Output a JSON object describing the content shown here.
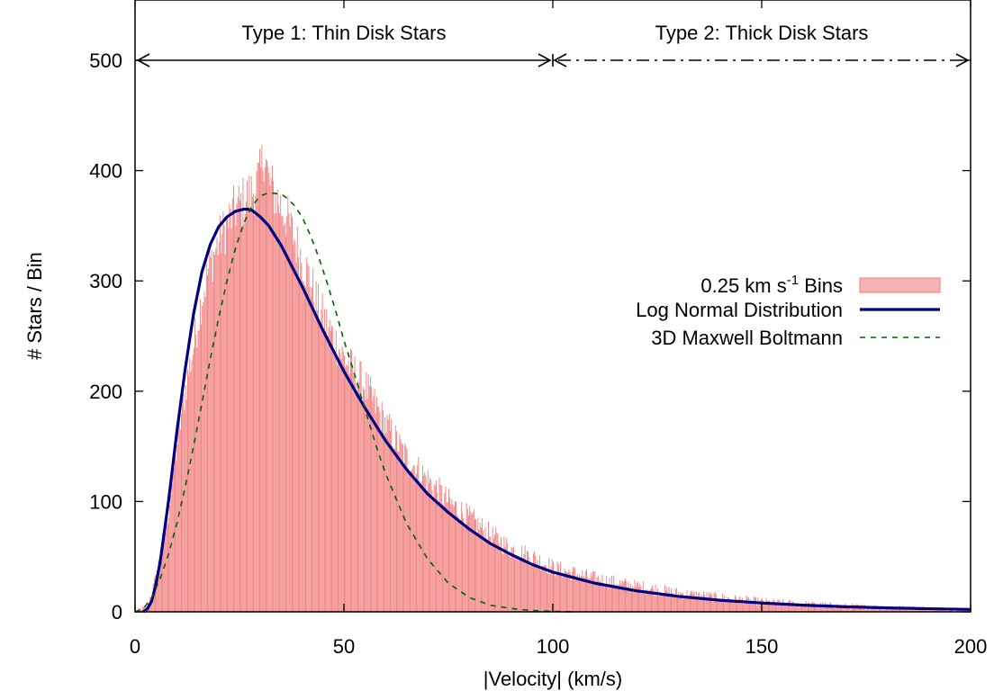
{
  "chart_data": {
    "type": "bar",
    "xlabel": "|Velocity| (km/s)",
    "ylabel": "# Stars  / Bin",
    "xlim": [
      0,
      200
    ],
    "ylim": [
      0,
      500
    ],
    "x_ticks": [
      "0",
      "50",
      "100",
      "150",
      "200"
    ],
    "y_ticks": [
      "0",
      "100",
      "200",
      "300",
      "400",
      "500"
    ],
    "grid": false,
    "legend_position": "right",
    "annotations": [
      {
        "text": "Type 1: Thin Disk Stars",
        "x_range": [
          0,
          100
        ],
        "y": 500,
        "style": "solid-double-arrow"
      },
      {
        "text": "Type 2: Thick Disk Stars",
        "x_range": [
          100,
          200
        ],
        "y": 500,
        "style": "dash-dot-double-arrow"
      }
    ],
    "legend": [
      {
        "prefix": "0.25 km s",
        "superscript": "-1",
        "suffix": " Bins",
        "swatch": "#f08080"
      },
      {
        "label": "Log Normal Distribution",
        "swatch": "#000080"
      },
      {
        "label": "3D Maxwell Boltmann",
        "swatch": "#006400"
      }
    ],
    "series": [
      {
        "kind": "histogram",
        "bin_width": 0.25,
        "color": "#f08080",
        "envelope": {
          "x": [
            0,
            3,
            5,
            8,
            10,
            12,
            14,
            16,
            18,
            20,
            22,
            24,
            26,
            28,
            30,
            31,
            32,
            34,
            36,
            38,
            40,
            42,
            44,
            46,
            48,
            50,
            55,
            60,
            65,
            70,
            75,
            80,
            85,
            90,
            95,
            100,
            110,
            120,
            130,
            140,
            150,
            160,
            170,
            180,
            190,
            200
          ],
          "y": [
            0,
            5,
            30,
            90,
            150,
            200,
            240,
            285,
            315,
            335,
            350,
            365,
            372,
            380,
            395,
            420,
            390,
            375,
            360,
            340,
            320,
            300,
            275,
            260,
            245,
            230,
            205,
            170,
            140,
            120,
            100,
            85,
            70,
            57,
            50,
            40,
            30,
            23,
            17,
            13,
            9,
            7,
            5,
            4,
            3,
            2
          ]
        }
      },
      {
        "name": "Log Normal Distribution",
        "kind": "line",
        "color": "#000080",
        "x": [
          2,
          3,
          4,
          5,
          6,
          8,
          10,
          12,
          14,
          16,
          18,
          20,
          22,
          24,
          26,
          27,
          28,
          30,
          32,
          35,
          40,
          45,
          50,
          55,
          60,
          65,
          70,
          75,
          80,
          85,
          90,
          95,
          100,
          110,
          120,
          130,
          140,
          150,
          160,
          170,
          180,
          190,
          200
        ],
        "y": [
          0,
          3,
          10,
          25,
          45,
          100,
          163,
          220,
          270,
          308,
          333,
          349,
          358,
          363,
          365,
          365,
          364,
          358,
          350,
          332,
          295,
          255,
          218,
          185,
          155,
          129,
          107,
          90,
          75,
          62,
          52,
          43,
          36,
          26,
          19,
          14,
          10.5,
          8,
          6,
          4.6,
          3.6,
          2.8,
          2.2
        ]
      },
      {
        "name": "3D Maxwell Boltmann",
        "kind": "line",
        "color": "#006400",
        "x": [
          0,
          2,
          4,
          6,
          8,
          10,
          12,
          14,
          16,
          18,
          20,
          22,
          24,
          26,
          28,
          30,
          32,
          34,
          35,
          36,
          38,
          40,
          42,
          44,
          46,
          48,
          50,
          52,
          55,
          58,
          60,
          65,
          70,
          75,
          80,
          85,
          90,
          95,
          100,
          105
        ],
        "y": [
          0,
          3,
          13,
          30,
          52,
          80,
          113,
          150,
          189,
          229,
          266,
          300,
          329,
          352,
          368,
          377,
          380,
          379,
          379,
          376,
          369,
          358,
          341,
          321,
          298,
          273,
          246,
          222,
          184,
          147,
          125,
          80,
          48,
          26,
          13,
          6,
          3,
          1.2,
          0.4,
          0
        ]
      }
    ]
  }
}
